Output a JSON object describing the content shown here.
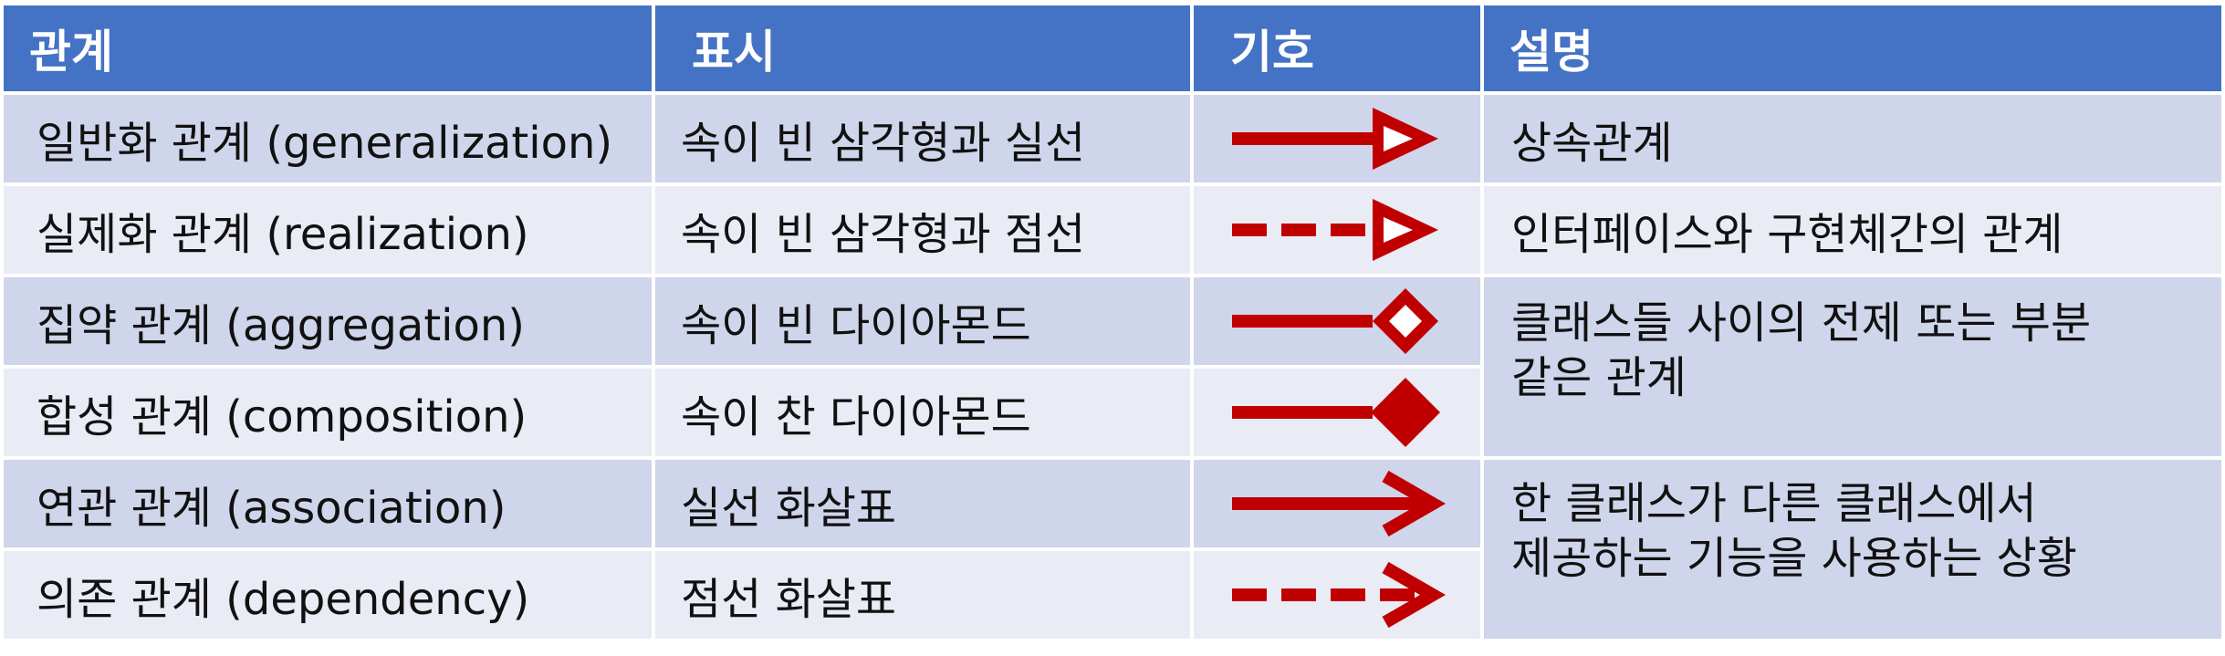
{
  "headers": {
    "relation": "관계",
    "notation": "표시",
    "symbol": "기호",
    "description": "설명"
  },
  "rows": [
    {
      "relation": "일반화 관계 (generalization)",
      "notation": "속이 빈 삼각형과 실선",
      "symbol": "hollow-triangle-solid-line-arrow-icon"
    },
    {
      "relation": "실제화 관계 (realization)",
      "notation": "속이 빈 삼각형과 점선",
      "symbol": "hollow-triangle-dashed-line-arrow-icon"
    },
    {
      "relation": "집약 관계 (aggregation)",
      "notation": "속이 빈 다이아몬드",
      "symbol": "hollow-diamond-line-icon"
    },
    {
      "relation": "합성 관계 (composition)",
      "notation": "속이 찬 다이아몬드",
      "symbol": "filled-diamond-line-icon"
    },
    {
      "relation": "연관 관계 (association)",
      "notation": "실선 화살표",
      "symbol": "solid-line-arrow-icon"
    },
    {
      "relation": "의존 관계 (dependency)",
      "notation": "점선 화살표",
      "symbol": "dashed-line-arrow-icon"
    }
  ],
  "descriptions": [
    {
      "lines": [
        "상속관계"
      ]
    },
    {
      "lines": [
        "인터페이스와 구현체간의 관계"
      ]
    },
    {
      "lines": [
        "클래스들 사이의 전제 또는 부분",
        "같은 관계"
      ]
    },
    {
      "lines": [
        "한 클래스가 다른 클래스에서",
        "제공하는 기능을 사용하는 상황"
      ]
    }
  ],
  "colors": {
    "header_bg": "#4472C4",
    "row_dark": "#CFD5EA",
    "row_light": "#E9EBF5",
    "symbol_red": "#C00000"
  }
}
